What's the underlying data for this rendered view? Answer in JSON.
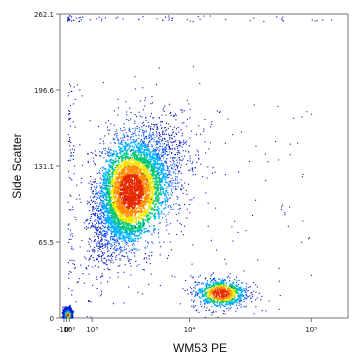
{
  "chart_data": {
    "type": "scatter",
    "title": "",
    "xlabel": "WM53 PE",
    "ylabel": "Side Scatter",
    "x_scale": "biexponential",
    "x_tick_labels": [
      "-10²",
      "0",
      "10²",
      "10³",
      "10⁴",
      "10⁵"
    ],
    "x_ticks": [
      -100,
      0,
      100,
      1000,
      10000,
      100000
    ],
    "y_tick_labels": [
      "0",
      "65.5",
      "131.1",
      "196.6",
      "262.1"
    ],
    "ylim": [
      0,
      262.1
    ],
    "grid": false,
    "legend": "none",
    "density_colors": [
      "#0018c8",
      "#0050ff",
      "#00b4ff",
      "#00c878",
      "#f0e600",
      "#ff8c00",
      "#e62800"
    ],
    "populations": [
      {
        "name": "",
        "x_center": 3000,
        "y_center": 110,
        "x_spread_decades": 0.22,
        "y_spread": 28,
        "events": 4200
      },
      {
        "name": "",
        "x_center": 20,
        "y_center": 3,
        "x_spread_decades": 0.35,
        "y_spread": 2.5,
        "events": 2600
      },
      {
        "name": "",
        "x_center": 18000,
        "y_center": 22,
        "x_spread_decades": 0.12,
        "y_spread": 7,
        "events": 700
      }
    ]
  }
}
